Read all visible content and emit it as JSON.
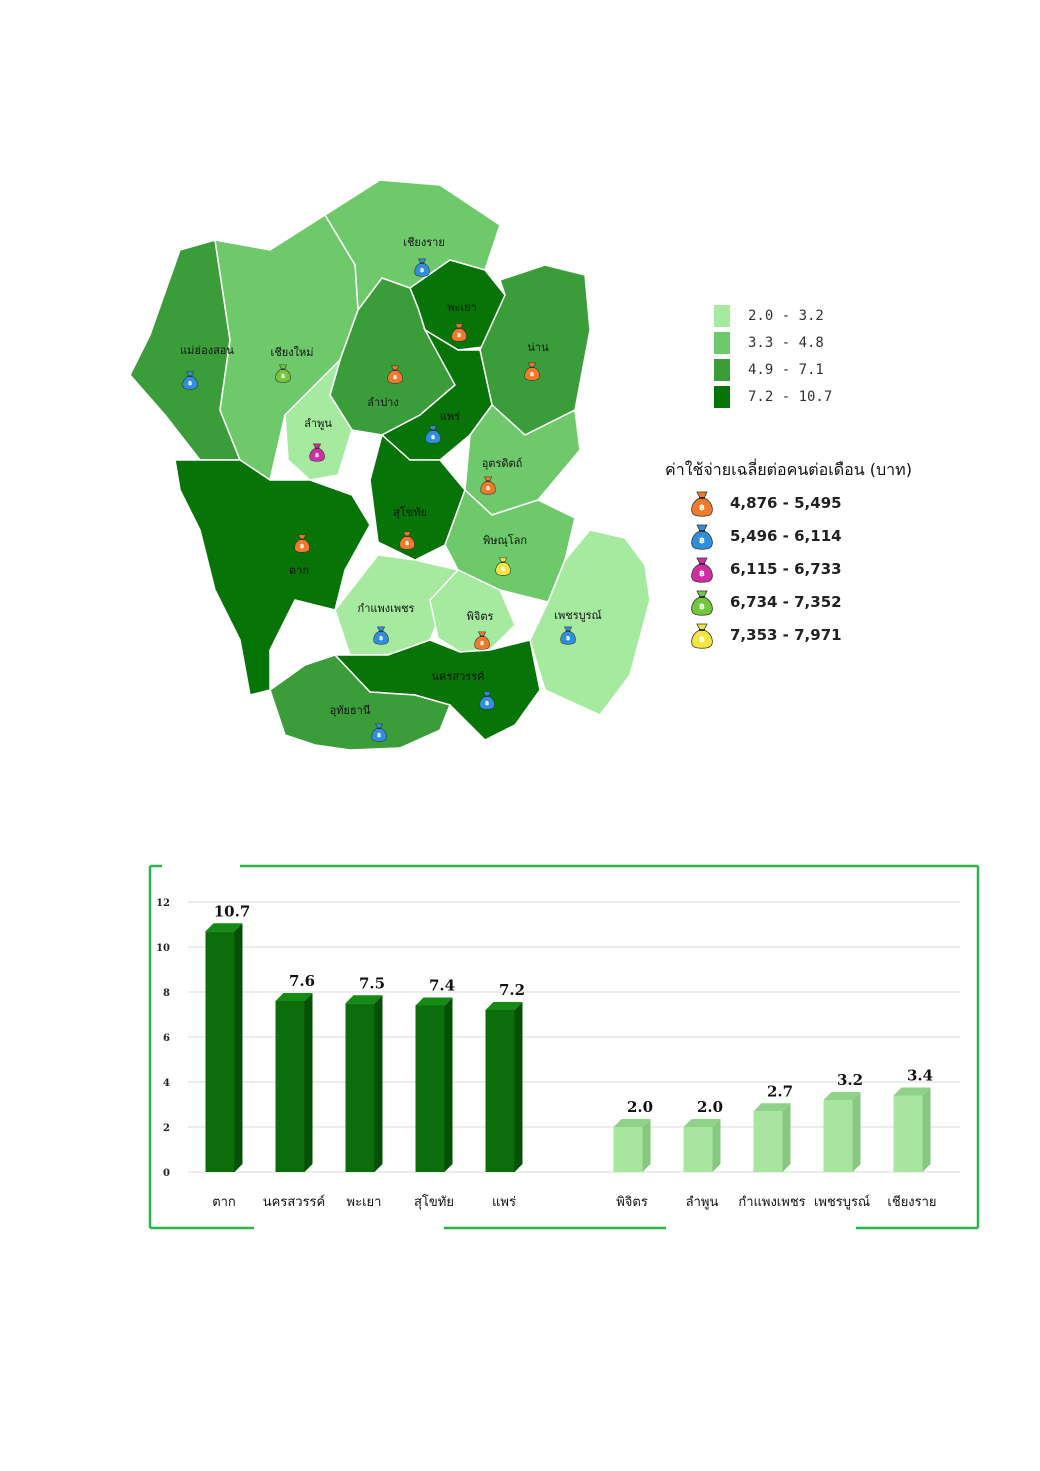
{
  "map": {
    "provinces": [
      {
        "name": "เชียงราย",
        "density_class": 1,
        "spend_class": 1
      },
      {
        "name": "พะเยา",
        "density_class": 3,
        "spend_class": 0
      },
      {
        "name": "น่าน",
        "density_class": 2,
        "spend_class": 0
      },
      {
        "name": "แม่ฮ่องสอน",
        "density_class": 2,
        "spend_class": 1
      },
      {
        "name": "เชียงใหม่",
        "density_class": 1,
        "spend_class": 3
      },
      {
        "name": "ลำปาง",
        "density_class": 2,
        "spend_class": 0
      },
      {
        "name": "ลำพูน",
        "density_class": 0,
        "spend_class": 2
      },
      {
        "name": "แพร่",
        "density_class": 3,
        "spend_class": 1
      },
      {
        "name": "อุตรดิตถ์",
        "density_class": 1,
        "spend_class": 0
      },
      {
        "name": "สุโขทัย",
        "density_class": 3,
        "spend_class": 0
      },
      {
        "name": "ตาก",
        "density_class": 3,
        "spend_class": 0
      },
      {
        "name": "พิษณุโลก",
        "density_class": 1,
        "spend_class": 4
      },
      {
        "name": "กำแพงเพชร",
        "density_class": 0,
        "spend_class": 1
      },
      {
        "name": "พิจิตร",
        "density_class": 0,
        "spend_class": 0
      },
      {
        "name": "เพชรบูรณ์",
        "density_class": 0,
        "spend_class": 1
      },
      {
        "name": "นครสวรรค์",
        "density_class": 3,
        "spend_class": 1
      },
      {
        "name": "อุทัยธานี",
        "density_class": 2,
        "spend_class": 1
      }
    ]
  },
  "legend_density": {
    "items": [
      {
        "label": "2.0 - 3.2",
        "color": "#a6eaa0"
      },
      {
        "label": "3.3 - 4.8",
        "color": "#6ec96a"
      },
      {
        "label": "4.9 - 7.1",
        "color": "#3a9d3a"
      },
      {
        "label": "7.2 - 10.7",
        "color": "#067406"
      }
    ]
  },
  "legend_spend": {
    "title": "ค่าใช้จ่ายเฉลี่ยต่อคนต่อเดือน (บาท)",
    "items": [
      {
        "label": "4,876 - 5,495",
        "color": "#f07a2a",
        "icon": "money-bag-icon"
      },
      {
        "label": "5,496 - 6,114",
        "color": "#2f8fde",
        "icon": "money-bag-icon"
      },
      {
        "label": "6,115 - 6,733",
        "color": "#d42ca6",
        "icon": "money-bag-icon"
      },
      {
        "label": "6,734 - 7,352",
        "color": "#72c83a",
        "icon": "money-bag-icon"
      },
      {
        "label": "7,353 - 7,971",
        "color": "#f4e640",
        "icon": "money-bag-icon"
      }
    ]
  },
  "chart_data": {
    "type": "bar",
    "categories": [
      "ตาก",
      "นครสวรรค์",
      "พะเยา",
      "สุโขทัย",
      "แพร่",
      "พิจิตร",
      "ลำพูน",
      "กำแพงเพชร",
      "เพชรบูรณ์",
      "เชียงราย"
    ],
    "values": [
      10.7,
      7.6,
      7.5,
      7.4,
      7.2,
      2.0,
      2.0,
      2.7,
      3.2,
      3.4
    ],
    "data_labels": [
      "10.7",
      "7.6",
      "7.5",
      "7.4",
      "7.2",
      "2.0",
      "2.0",
      "2.7",
      "3.2",
      "3.4"
    ],
    "ylim": [
      0,
      12
    ],
    "yticks": [
      0,
      2,
      4,
      6,
      8,
      10,
      12
    ],
    "grid": true,
    "title": "",
    "xlabel": "",
    "ylabel": "",
    "colors": {
      "high": "#0b6e0b",
      "low": "#a8e6a0",
      "frame": "#2db34a"
    }
  }
}
